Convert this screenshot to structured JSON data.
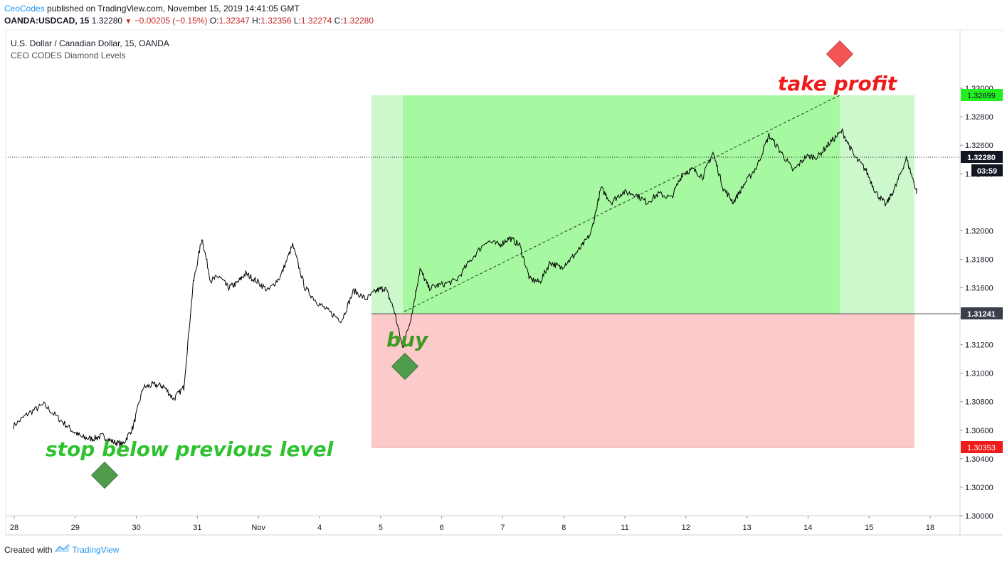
{
  "header": {
    "author": "CeoCodes",
    "published": "published on TradingView.com, November 15, 2019 14:41:05 GMT",
    "symbol": "OANDA:USDCAD, 15",
    "last": "1.32280",
    "change": "−0.00205 (−0.15%)",
    "o_label": "O:",
    "o": "1.32347",
    "h_label": "H:",
    "h": "1.32356",
    "l_label": "L:",
    "l": "1.32274",
    "c_label": "C:",
    "c": "1.32280"
  },
  "footer": {
    "created_with": "Created with",
    "brand": "TradingView"
  },
  "colors": {
    "profit_zone_light": "#ccf8cc",
    "profit_zone_dark": "#a6f9a0",
    "loss_zone": "#fccaca",
    "buy_diamond": "#4f9c4c",
    "tp_diamond": "#f55454",
    "green_text": "#2ec32e",
    "buy_text": "#3f9a22",
    "red_text": "#ee1b1b",
    "badge_green": "#22ee22",
    "badge_red": "#ee1b1b",
    "badge_dark": "#131722"
  },
  "chart_data": {
    "type": "line",
    "title": "U.S. Dollar / Canadian Dollar, 15, OANDA",
    "subtitle": "CEO CODES Diamond Levels",
    "x_ticks": [
      "28",
      "29",
      "30",
      "31",
      "Nov",
      "4",
      "5",
      "6",
      "7",
      "8",
      "11",
      "12",
      "13",
      "14",
      "15",
      "18"
    ],
    "y_ticks": [
      "1.33000",
      "1.32800",
      "1.32600",
      "1.32400",
      "1.32000",
      "1.31800",
      "1.31600",
      "1.31400",
      "1.31200",
      "1.31000",
      "1.30800",
      "1.30600",
      "1.30400",
      "1.30200",
      "1.30000"
    ],
    "ylim": [
      1.299,
      1.3347
    ],
    "grid": false,
    "series": [
      {
        "points": [
          [
            "28",
            1.3063
          ],
          [
            "28",
            1.3072
          ],
          [
            "28",
            1.3078
          ],
          [
            "28",
            1.3068
          ],
          [
            "29",
            1.306
          ],
          [
            "29",
            1.3055
          ],
          [
            "29",
            1.3054
          ],
          [
            "29",
            1.3056
          ],
          [
            "29",
            1.3052
          ],
          [
            "29",
            1.305
          ],
          [
            "30",
            1.3062
          ],
          [
            "30",
            1.309
          ],
          [
            "30",
            1.3092
          ],
          [
            "30",
            1.3091
          ],
          [
            "30",
            1.3082
          ],
          [
            "30",
            1.309
          ],
          [
            "31",
            1.3163
          ],
          [
            "31",
            1.3195
          ],
          [
            "31",
            1.3165
          ],
          [
            "31",
            1.3168
          ],
          [
            "31",
            1.316
          ],
          [
            "31",
            1.3163
          ],
          [
            "31",
            1.317
          ],
          [
            "Nov",
            1.3165
          ],
          [
            "Nov",
            1.3158
          ],
          [
            "Nov",
            1.3168
          ],
          [
            "Nov",
            1.319
          ],
          [
            "Nov",
            1.316
          ],
          [
            "4",
            1.315
          ],
          [
            "4",
            1.3143
          ],
          [
            "4",
            1.3137
          ],
          [
            "4",
            1.3158
          ],
          [
            "4",
            1.3152
          ],
          [
            "5",
            1.3158
          ],
          [
            "5",
            1.316
          ],
          [
            "5",
            1.3145
          ],
          [
            "5",
            1.3118
          ],
          [
            "5",
            1.314
          ],
          [
            "5",
            1.3173
          ],
          [
            "5",
            1.316
          ],
          [
            "6",
            1.3162
          ],
          [
            "6",
            1.3165
          ],
          [
            "6",
            1.318
          ],
          [
            "6",
            1.3193
          ],
          [
            "7",
            1.319
          ],
          [
            "7",
            1.3195
          ],
          [
            "7",
            1.319
          ],
          [
            "7",
            1.3166
          ],
          [
            "7",
            1.3164
          ],
          [
            "7",
            1.3178
          ],
          [
            "8",
            1.3174
          ],
          [
            "8",
            1.318
          ],
          [
            "8",
            1.3188
          ],
          [
            "8",
            1.3198
          ],
          [
            "8",
            1.323
          ],
          [
            "8",
            1.322
          ],
          [
            "11",
            1.3227
          ],
          [
            "11",
            1.3226
          ],
          [
            "11",
            1.322
          ],
          [
            "11",
            1.3226
          ],
          [
            "11",
            1.3223
          ],
          [
            "12",
            1.324
          ],
          [
            "12",
            1.3243
          ],
          [
            "12",
            1.3238
          ],
          [
            "12",
            1.3255
          ],
          [
            "12",
            1.323
          ],
          [
            "12",
            1.322
          ],
          [
            "13",
            1.3233
          ],
          [
            "13",
            1.3245
          ],
          [
            "13",
            1.3267
          ],
          [
            "13",
            1.3255
          ],
          [
            "13",
            1.3242
          ],
          [
            "14",
            1.3252
          ],
          [
            "14",
            1.3252
          ],
          [
            "14",
            1.3262
          ],
          [
            "14",
            1.327
          ],
          [
            "14",
            1.3252
          ],
          [
            "15",
            1.3243
          ],
          [
            "15",
            1.3227
          ],
          [
            "15",
            1.3218
          ],
          [
            "15",
            1.3232
          ],
          [
            "15",
            1.3251
          ],
          [
            "15",
            1.3228
          ]
        ]
      }
    ],
    "annotations": {
      "stop_text": "stop below previous level",
      "buy_text": "buy",
      "take_profit_text": "take profit",
      "take_profit_price": "1.32699",
      "current_price": "1.32280",
      "countdown": "03:59",
      "entry_price": "1.31241",
      "stop_price": "1.30353",
      "take_profit_value": 1.32699,
      "current_value": 1.3228,
      "entry_value": 1.31241,
      "stop_value": 1.30353
    }
  }
}
